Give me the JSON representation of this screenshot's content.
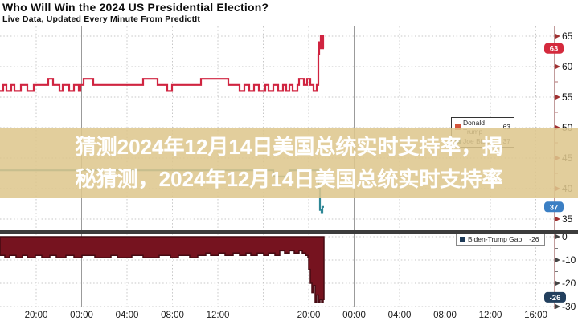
{
  "header": {
    "title": "Who Will Win the 2024 US Presidential Election?",
    "subtitle": "Live Data, Updated Every Minute From PredictIt"
  },
  "overlay_banner": {
    "line1": "猜测2024年12月14日美国总统实时支持率，揭",
    "line2": "秘猜测，2024年12月14日美国总统实时支持率"
  },
  "legends": {
    "top": {
      "rows": [
        {
          "name": "Donald Trump",
          "value": "63"
        },
        {
          "name": "Joe Biden",
          "value": "37"
        }
      ]
    },
    "bottom": {
      "rows": [
        {
          "name": "Biden-Trump Gap",
          "value": "-26"
        }
      ]
    }
  },
  "colors": {
    "trump_line": "#d02440",
    "trump_swatch": "#d4543a",
    "trump_badge": "#d42a3d",
    "biden_line": "#2e8796",
    "biden_swatch": "#2e6f7e",
    "biden_badge": "#3b7fc4",
    "gap_fill": "#76131f",
    "gap_stroke": "#450a12",
    "gap_swatch": "#1d3a57",
    "gap_badge": "#23405e",
    "banner_bg": "#dec78d",
    "separator": "#3c3c3c",
    "axis": "#9a5a5a"
  },
  "chart_data": [
    {
      "type": "line",
      "panel": "top",
      "title": "Who Will Win the 2024 US Presidential Election?",
      "subtitle": "Live Data, Updated Every Minute From PredictIt",
      "ylim": [
        33,
        66
      ],
      "y_ticks": [
        65,
        60,
        55,
        50,
        45,
        40,
        35
      ],
      "grid": true,
      "legend_position": "right-middle",
      "series": [
        {
          "name": "Donald Trump",
          "current": 63,
          "points": [
            [
              0,
              56
            ],
            [
              4,
              57
            ],
            [
              8,
              56
            ],
            [
              14,
              57
            ],
            [
              18,
              56
            ],
            [
              26,
              57
            ],
            [
              34,
              56
            ],
            [
              42,
              57
            ],
            [
              56,
              57
            ],
            [
              60,
              58
            ],
            [
              66,
              57
            ],
            [
              74,
              56
            ],
            [
              78,
              57
            ],
            [
              86,
              56
            ],
            [
              92,
              57
            ],
            [
              98,
              56
            ],
            [
              100,
              57
            ],
            [
              104,
              58
            ],
            [
              116,
              57
            ],
            [
              178,
              58
            ],
            [
              196,
              57
            ],
            [
              208,
              56
            ],
            [
              214,
              57
            ],
            [
              246,
              57
            ],
            [
              250,
              58
            ],
            [
              280,
              58
            ],
            [
              284,
              57
            ],
            [
              298,
              56
            ],
            [
              304,
              57
            ],
            [
              310,
              56
            ],
            [
              316,
              57
            ],
            [
              322,
              56
            ],
            [
              330,
              57
            ],
            [
              334,
              56
            ],
            [
              340,
              57
            ],
            [
              346,
              56
            ],
            [
              352,
              57
            ],
            [
              356,
              56
            ],
            [
              360,
              57
            ],
            [
              364,
              56
            ],
            [
              370,
              57
            ],
            [
              372,
              58
            ],
            [
              378,
              57
            ],
            [
              382,
              58
            ],
            [
              386,
              57
            ],
            [
              390,
              56
            ],
            [
              394,
              57
            ],
            [
              396,
              62
            ],
            [
              397,
              64
            ],
            [
              398,
              63
            ],
            [
              399,
              65
            ],
            [
              400,
              64
            ],
            [
              401,
              65
            ],
            [
              402,
              63
            ],
            [
              403,
              63
            ]
          ]
        },
        {
          "name": "Joe Biden",
          "current": 37,
          "points": [
            [
              0,
              43
            ],
            [
              300,
              43
            ],
            [
              340,
              42
            ],
            [
              360,
              43
            ],
            [
              394,
              43
            ],
            [
              396,
              40
            ],
            [
              398,
              36.5
            ],
            [
              400,
              36
            ],
            [
              401,
              37
            ],
            [
              403,
              37
            ]
          ]
        }
      ],
      "value_badges": [
        {
          "label": "63",
          "value": 63
        },
        {
          "label": "37",
          "value": 37
        }
      ]
    },
    {
      "type": "area",
      "panel": "bottom",
      "ylim": [
        -31,
        0
      ],
      "y_ticks": [
        0,
        -10,
        -20,
        -30
      ],
      "grid": true,
      "series": [
        {
          "name": "Biden-Trump Gap",
          "current": -26,
          "points": [
            [
              0,
              -8
            ],
            [
              6,
              -9
            ],
            [
              12,
              -8
            ],
            [
              20,
              -9
            ],
            [
              28,
              -8
            ],
            [
              34,
              -9
            ],
            [
              44,
              -8
            ],
            [
              52,
              -9
            ],
            [
              62,
              -8
            ],
            [
              70,
              -9
            ],
            [
              82,
              -8
            ],
            [
              92,
              -9
            ],
            [
              102,
              -8
            ],
            [
              118,
              -9
            ],
            [
              138,
              -8
            ],
            [
              146,
              -9
            ],
            [
              164,
              -8
            ],
            [
              178,
              -9
            ],
            [
              198,
              -8
            ],
            [
              212,
              -9
            ],
            [
              222,
              -8
            ],
            [
              236,
              -9
            ],
            [
              246,
              -8
            ],
            [
              256,
              -7
            ],
            [
              262,
              -8
            ],
            [
              272,
              -7
            ],
            [
              280,
              -8
            ],
            [
              290,
              -7
            ],
            [
              298,
              -8
            ],
            [
              306,
              -7
            ],
            [
              312,
              -8
            ],
            [
              320,
              -7
            ],
            [
              328,
              -8
            ],
            [
              334,
              -7
            ],
            [
              342,
              -8
            ],
            [
              348,
              -6
            ],
            [
              354,
              -7
            ],
            [
              360,
              -6
            ],
            [
              366,
              -7
            ],
            [
              372,
              -6
            ],
            [
              376,
              -7
            ],
            [
              380,
              -8
            ],
            [
              383,
              -9
            ],
            [
              384,
              -14
            ],
            [
              386,
              -20
            ],
            [
              388,
              -24
            ],
            [
              390,
              -21
            ],
            [
              392,
              -28
            ],
            [
              394,
              -25
            ],
            [
              396,
              -28
            ],
            [
              398,
              -27
            ],
            [
              400,
              -28
            ],
            [
              402,
              -27
            ],
            [
              403,
              -26
            ]
          ]
        }
      ],
      "value_badges": [
        {
          "label": "-26",
          "value": -26
        }
      ]
    }
  ],
  "x_axis": {
    "ticks": [
      {
        "label": "20:00",
        "solid": false
      },
      {
        "label": "00:00",
        "solid": true
      },
      {
        "label": "04:00",
        "solid": false
      },
      {
        "label": "08:00",
        "solid": false
      },
      {
        "label": "12:00",
        "solid": false
      },
      {
        "label": "",
        "solid": false
      },
      {
        "label": "20:00",
        "solid": false
      },
      {
        "label": "00:00",
        "solid": true
      },
      {
        "label": "04:00",
        "solid": false
      },
      {
        "label": "08:00",
        "solid": false
      },
      {
        "label": "12:00",
        "solid": false
      },
      {
        "label": "16:00",
        "solid": false
      }
    ]
  }
}
